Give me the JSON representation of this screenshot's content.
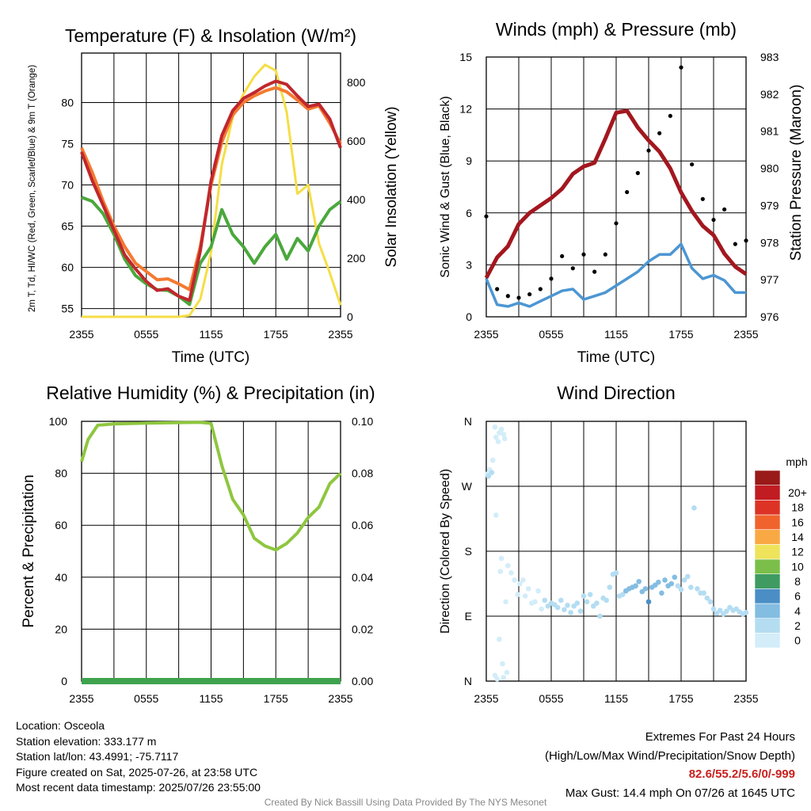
{
  "chart_data": [
    {
      "type": "line",
      "title": "Temperature (F) & Insolation (W/m²)",
      "xlabel": "Time (UTC)",
      "ylabel_left": "2m T, Td, HI/WC (Red, Green, Scarlet/Blue) & 9m T (Orange)",
      "ylabel_right": "Solar Insolation (Yellow)",
      "x_ticks": [
        "2355",
        "0555",
        "1155",
        "1755",
        "2355"
      ],
      "ylim": [
        54,
        86
      ],
      "ylim_right": [
        0,
        900
      ],
      "y_ticks": [
        55,
        60,
        65,
        70,
        75,
        80
      ],
      "y_ticks_right": [
        0,
        200,
        400,
        600,
        800
      ],
      "series": [
        {
          "name": "2m T",
          "color": "#c0272d",
          "axis": "left",
          "x": [
            0,
            1,
            2,
            3,
            4,
            5,
            6,
            7,
            8,
            9,
            10,
            11,
            12,
            13,
            14,
            15,
            16,
            17,
            18,
            19,
            20,
            21,
            22,
            23,
            24
          ],
          "values": [
            74,
            70.5,
            67.5,
            64.5,
            61.5,
            59.8,
            58.3,
            57.2,
            57.4,
            56.5,
            56,
            62,
            70.5,
            76,
            79,
            80.5,
            81.2,
            82,
            82.6,
            82.2,
            80.8,
            79.5,
            79.8,
            78,
            74.5
          ]
        },
        {
          "name": "9m T",
          "color": "#f37a32",
          "axis": "left",
          "x": [
            0,
            1,
            2,
            3,
            4,
            5,
            6,
            7,
            8,
            9,
            10,
            11,
            12,
            13,
            14,
            15,
            16,
            17,
            18,
            19,
            20,
            21,
            22,
            23,
            24
          ],
          "values": [
            74.5,
            71.5,
            68,
            65,
            62.5,
            60.5,
            59.5,
            58.5,
            58.6,
            58,
            57.3,
            62.5,
            70,
            75.2,
            78.5,
            80,
            80.8,
            81.4,
            81.8,
            81.3,
            80.3,
            79.2,
            79.6,
            77.5,
            75
          ]
        },
        {
          "name": "Td",
          "color": "#4aa83c",
          "axis": "left",
          "x": [
            0,
            1,
            2,
            3,
            4,
            5,
            6,
            7,
            8,
            9,
            10,
            11,
            12,
            13,
            14,
            15,
            16,
            17,
            18,
            19,
            20,
            21,
            22,
            23,
            24
          ],
          "values": [
            68.5,
            68,
            66.5,
            64,
            61,
            59,
            58,
            57.3,
            57.2,
            56.5,
            55.5,
            60.5,
            62.5,
            67,
            64,
            62.5,
            60.5,
            62.5,
            64,
            61,
            63.5,
            62,
            65,
            67,
            68
          ]
        },
        {
          "name": "Solar Insolation",
          "color": "#f5de45",
          "axis": "right",
          "x": [
            0,
            1,
            2,
            3,
            4,
            5,
            6,
            7,
            8,
            9,
            10,
            11,
            12,
            13,
            14,
            15,
            16,
            17,
            18,
            19,
            20,
            21,
            22,
            23,
            24
          ],
          "values": [
            0,
            0,
            0,
            0,
            0,
            0,
            0,
            0,
            0,
            0,
            5,
            60,
            220,
            520,
            680,
            760,
            820,
            860,
            840,
            700,
            420,
            450,
            250,
            150,
            40
          ]
        }
      ]
    },
    {
      "type": "line",
      "title": "Winds (mph) & Pressure (mb)",
      "xlabel": "Time (UTC)",
      "ylabel_left": "Sonic Wind & Gust (Blue, Black)",
      "ylabel_right": "Station Pressure (Maroon)",
      "x_ticks": [
        "2355",
        "0555",
        "1155",
        "1755",
        "2355"
      ],
      "ylim": [
        0,
        15
      ],
      "ylim_right": [
        976,
        983
      ],
      "y_ticks": [
        0,
        3,
        6,
        9,
        12,
        15
      ],
      "y_ticks_right": [
        976,
        977,
        978,
        979,
        980,
        981,
        982,
        983
      ],
      "series": [
        {
          "name": "Sonic Wind",
          "color": "#4c96d2",
          "axis": "left",
          "x": [
            0,
            1,
            2,
            3,
            4,
            5,
            6,
            7,
            8,
            9,
            10,
            11,
            12,
            13,
            14,
            15,
            16,
            17,
            18,
            19,
            20,
            21,
            22,
            23,
            24
          ],
          "values": [
            2.2,
            0.7,
            0.6,
            0.8,
            0.6,
            0.9,
            1.2,
            1.5,
            1.6,
            1.0,
            1.2,
            1.4,
            1.8,
            2.2,
            2.6,
            3.2,
            3.6,
            3.6,
            4.2,
            2.8,
            2.2,
            2.4,
            2.1,
            1.4,
            1.4
          ]
        },
        {
          "name": "Gust",
          "color": "#000000",
          "axis": "left",
          "style": "dots",
          "x": [
            0,
            1,
            2,
            3,
            4,
            5,
            6,
            7,
            8,
            9,
            10,
            11,
            12,
            13,
            14,
            15,
            16,
            17,
            18,
            19,
            20,
            21,
            22,
            23,
            24
          ],
          "values": [
            5.8,
            1.6,
            1.2,
            1.1,
            1.3,
            1.6,
            2.2,
            3.5,
            2.8,
            3.6,
            2.6,
            3.6,
            5.4,
            7.2,
            8.3,
            9.6,
            10.6,
            11.6,
            14.4,
            8.8,
            6.8,
            5.6,
            6.2,
            4.2,
            4.4
          ]
        },
        {
          "name": "Station Pressure",
          "color": "#a3171f",
          "axis": "right",
          "x": [
            0,
            1,
            2,
            3,
            4,
            5,
            6,
            7,
            8,
            9,
            10,
            11,
            12,
            13,
            14,
            15,
            16,
            17,
            18,
            19,
            20,
            21,
            22,
            23,
            24
          ],
          "values": [
            977.05,
            977.6,
            977.9,
            978.5,
            978.8,
            979.0,
            979.2,
            979.45,
            979.85,
            980.05,
            980.15,
            980.8,
            981.5,
            981.55,
            981.1,
            980.75,
            980.45,
            980.0,
            979.35,
            978.85,
            978.45,
            978.2,
            977.7,
            977.35,
            977.15
          ]
        }
      ]
    },
    {
      "type": "line",
      "title": "Relative Humidity (%) & Precipitation (in)",
      "xlabel": "",
      "ylabel_left": "Percent & Precipitation",
      "x_ticks": [
        "2355",
        "0555",
        "1155",
        "1755",
        "2355"
      ],
      "ylim": [
        0,
        100
      ],
      "ylim_right": [
        0,
        0.1
      ],
      "y_ticks": [
        0,
        20,
        40,
        60,
        80,
        100
      ],
      "y_ticks_right": [
        "0.00",
        "0.02",
        "0.04",
        "0.06",
        "0.08",
        "0.10"
      ],
      "series": [
        {
          "name": "Relative Humidity",
          "color": "#8ec63f",
          "axis": "left",
          "x": [
            0,
            0.6,
            1.5,
            3,
            6,
            9,
            11,
            12,
            13,
            14,
            15,
            16,
            17,
            18,
            19,
            20,
            21,
            22,
            23,
            24
          ],
          "values": [
            84.5,
            93,
            98.5,
            99,
            99.3,
            99.5,
            99.6,
            99.2,
            83,
            70,
            64,
            55,
            52,
            50.5,
            53,
            57,
            63,
            67,
            76,
            80
          ]
        },
        {
          "name": "Precipitation",
          "color": "#3fa34d",
          "axis": "right",
          "x": [
            0,
            24
          ],
          "values": [
            0,
            0
          ]
        }
      ]
    },
    {
      "type": "scatter",
      "title": "Wind Direction",
      "xlabel": "",
      "ylabel_left": "Direction (Colored By Speed)",
      "x_ticks": [
        "2355",
        "0555",
        "1155",
        "1755",
        "2355"
      ],
      "y_ticks": [
        "N",
        "E",
        "S",
        "W",
        "N"
      ],
      "ylim": [
        0,
        360
      ],
      "legend": {
        "title": "mph",
        "labels": [
          "0",
          "2",
          "4",
          "6",
          "8",
          "10",
          "12",
          "14",
          "16",
          "18",
          "20+"
        ],
        "colors": [
          "#d3edf9",
          "#b4ddf2",
          "#84bde2",
          "#4b8ec6",
          "#3f9b62",
          "#7bbf4a",
          "#eee35a",
          "#f9a944",
          "#f0632d",
          "#dc3326",
          "#c11c22",
          "#9a1919"
        ],
        "placement": "right"
      },
      "points": [
        [
          0.1,
          287,
          0.5
        ],
        [
          0.3,
          293,
          0.5
        ],
        [
          0.5,
          289,
          1
        ],
        [
          0.2,
          284,
          1
        ],
        [
          0.6,
          306,
          0.5
        ],
        [
          0.8,
          352,
          0.5
        ],
        [
          0.9,
          338,
          0.5
        ],
        [
          1.1,
          332,
          0.5
        ],
        [
          1.2,
          344,
          0.5
        ],
        [
          1.4,
          349,
          0.5
        ],
        [
          1.6,
          342,
          0.5
        ],
        [
          1.7,
          336,
          0.5
        ],
        [
          0.9,
          230,
          0.5
        ],
        [
          1.3,
          152,
          0.5
        ],
        [
          1.2,
          58,
          0.5
        ],
        [
          1.5,
          24,
          0.5
        ],
        [
          0.8,
          8,
          0.5
        ],
        [
          1.0,
          3,
          0.5
        ],
        [
          1.6,
          5,
          0.5
        ],
        [
          1.9,
          12,
          0.5
        ],
        [
          1.4,
          170,
          0.5
        ],
        [
          2.0,
          160,
          0.5
        ],
        [
          1.8,
          110,
          0.5
        ],
        [
          2.3,
          150,
          0.5
        ],
        [
          2.6,
          140,
          0.5
        ],
        [
          2.9,
          120,
          0.5
        ],
        [
          3.1,
          135,
          0.5
        ],
        [
          3.4,
          140,
          0.5
        ],
        [
          3.6,
          118,
          0.5
        ],
        [
          3.9,
          128,
          0.5
        ],
        [
          4.2,
          108,
          0.5
        ],
        [
          4.5,
          110,
          0.5
        ],
        [
          4.8,
          125,
          0.5
        ],
        [
          5.1,
          100,
          0.5
        ],
        [
          5.4,
          112,
          1.5
        ],
        [
          5.7,
          104,
          2
        ],
        [
          6.0,
          108,
          1.5
        ],
        [
          6.3,
          106,
          2
        ],
        [
          6.6,
          102,
          2
        ],
        [
          6.9,
          112,
          1.5
        ],
        [
          7.2,
          99,
          2
        ],
        [
          7.5,
          105,
          2
        ],
        [
          7.8,
          95,
          1.5
        ],
        [
          8.1,
          104,
          2
        ],
        [
          8.4,
          108,
          1.5
        ],
        [
          8.7,
          97,
          2
        ],
        [
          9.0,
          118,
          2
        ],
        [
          9.3,
          110,
          1.5
        ],
        [
          9.6,
          120,
          2
        ],
        [
          9.9,
          104,
          2
        ],
        [
          10.2,
          108,
          2
        ],
        [
          10.5,
          90,
          1.5
        ],
        [
          10.8,
          115,
          2
        ],
        [
          11.1,
          112,
          2
        ],
        [
          11.4,
          130,
          1.5
        ],
        [
          11.7,
          148,
          1
        ],
        [
          12.0,
          150,
          1
        ],
        [
          12.3,
          118,
          2
        ],
        [
          12.6,
          120,
          2.5
        ],
        [
          12.9,
          125,
          3
        ],
        [
          13.2,
          128,
          3.5
        ],
        [
          13.5,
          130,
          3
        ],
        [
          13.8,
          132,
          4
        ],
        [
          14.1,
          138,
          4
        ],
        [
          14.4,
          124,
          4.5
        ],
        [
          14.7,
          128,
          4
        ],
        [
          15.0,
          110,
          6
        ],
        [
          15.3,
          130,
          4.5
        ],
        [
          15.6,
          133,
          3.5
        ],
        [
          15.9,
          137,
          4
        ],
        [
          16.2,
          122,
          3.5
        ],
        [
          16.5,
          140,
          3
        ],
        [
          16.8,
          132,
          3
        ],
        [
          17.1,
          135,
          3.5
        ],
        [
          17.4,
          144,
          3
        ],
        [
          17.7,
          132,
          2.5
        ],
        [
          18.0,
          127,
          2
        ],
        [
          18.3,
          140,
          2.5
        ],
        [
          18.6,
          145,
          2
        ],
        [
          18.9,
          130,
          2
        ],
        [
          19.2,
          240,
          2
        ],
        [
          19.5,
          128,
          2
        ],
        [
          19.8,
          122,
          2.5
        ],
        [
          20.1,
          122,
          2
        ],
        [
          20.4,
          115,
          2
        ],
        [
          20.7,
          110,
          2
        ],
        [
          21.0,
          100,
          2
        ],
        [
          21.3,
          94,
          2
        ],
        [
          21.6,
          98,
          2
        ],
        [
          21.9,
          93,
          2
        ],
        [
          22.2,
          97,
          1.5
        ],
        [
          22.5,
          102,
          1.5
        ],
        [
          22.8,
          98,
          1.5
        ],
        [
          23.1,
          100,
          1
        ],
        [
          23.4,
          96,
          1
        ],
        [
          23.7,
          93,
          1
        ],
        [
          24.0,
          95,
          1
        ]
      ]
    }
  ],
  "info": {
    "location": "Location: Osceola",
    "elevation": "Station elevation: 333.177 m",
    "latlon": "Station lat/lon: 43.4991; -75.7117",
    "created": "Figure created on Sat, 2025-07-26, at 23:58 UTC",
    "recent": "Most recent data timestamp: 2025/07/26 23:55:00"
  },
  "extremes": {
    "title": "Extremes For Past 24 Hours",
    "subtitle": "(High/Low/Max Wind/Precipitation/Snow Depth)",
    "values": "82.6/55.2/5.6/0/-999",
    "max_gust": "Max Gust: 14.4 mph On 07/26 at 1645 UTC"
  },
  "credit": "Created By Nick Bassill Using Data Provided By The NYS Mesonet",
  "colors": {
    "temperature": "#c0272d",
    "nine_m_temperature": "#f37a32",
    "dewpoint": "#4aa83c",
    "insolation": "#f5de45",
    "wind": "#4c96d2",
    "gust": "#000000",
    "pressure": "#a3171f",
    "humidity": "#8ec63f",
    "precipitation": "#3fa34d",
    "extremes_text": "#c8211e",
    "credit_text": "#888888"
  }
}
